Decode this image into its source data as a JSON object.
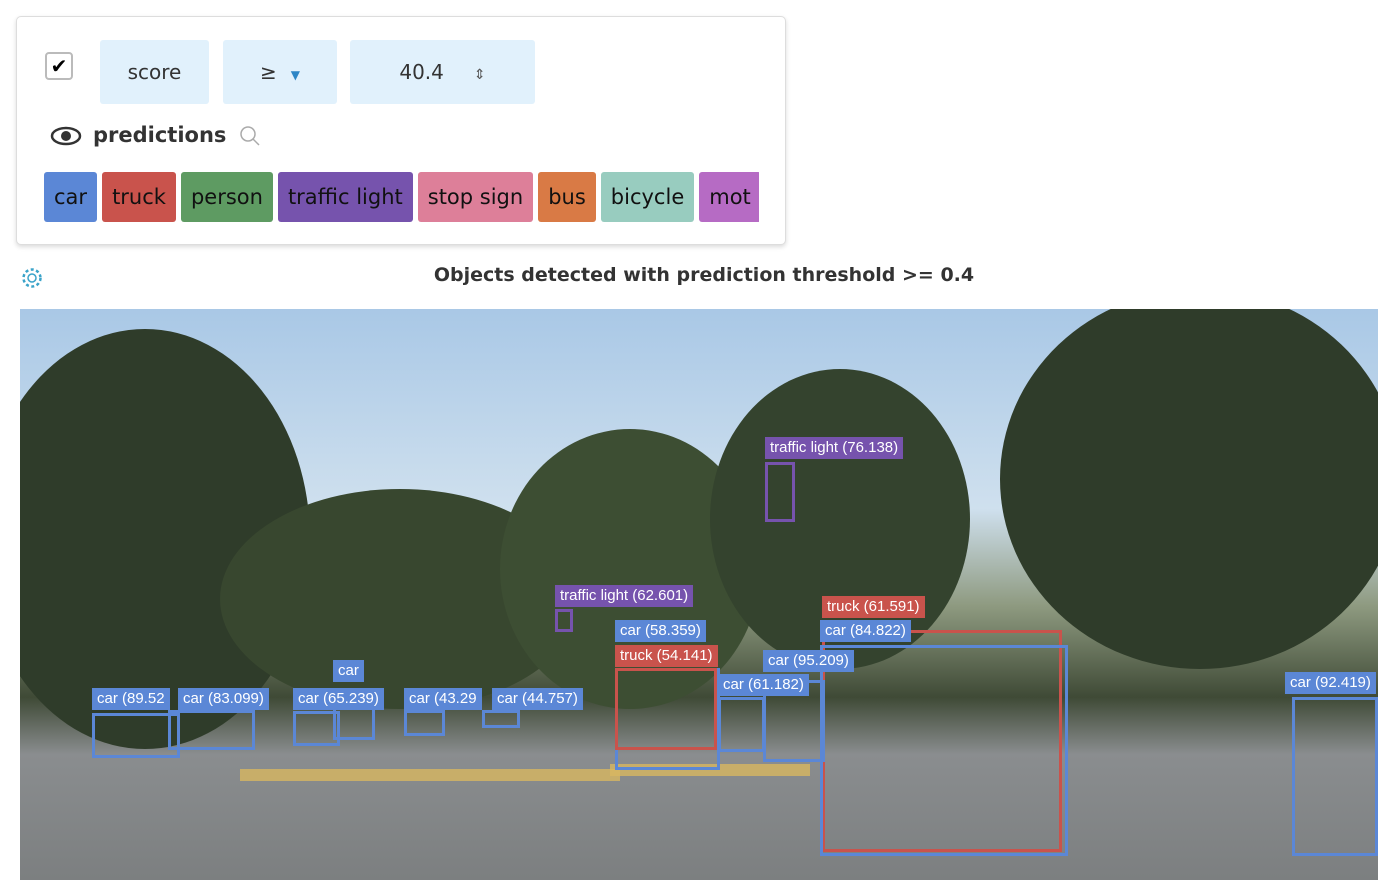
{
  "filter": {
    "checked": true,
    "field": "score",
    "operator": "≥",
    "value": "40.4"
  },
  "layer": {
    "name": "predictions"
  },
  "classes": [
    {
      "label": "car",
      "color": "#5b87d6"
    },
    {
      "label": "truck",
      "color": "#c9534c"
    },
    {
      "label": "person",
      "color": "#5e9b62"
    },
    {
      "label": "traffic light",
      "color": "#7653ad"
    },
    {
      "label": "stop sign",
      "color": "#dd7f99"
    },
    {
      "label": "bus",
      "color": "#d97a45"
    },
    {
      "label": "bicycle",
      "color": "#98ccbf"
    },
    {
      "label": "mot",
      "color": "#b66bc4"
    }
  ],
  "image_title": "Objects detected with prediction threshold >= 0.4",
  "boxes": [
    {
      "label": "truck (61.591)",
      "cls": "truck"
    },
    {
      "label": "car (84.822)",
      "cls": "car"
    },
    {
      "label": "traffic light (76.138)",
      "cls": "traffic light"
    },
    {
      "label": "traffic light (62.601)",
      "cls": "traffic light"
    },
    {
      "label": "car (58.359)",
      "cls": "car"
    },
    {
      "label": "truck (54.141)",
      "cls": "truck"
    },
    {
      "label": "car (95.209)",
      "cls": "car"
    },
    {
      "label": "car (61.182)",
      "cls": "car"
    },
    {
      "label": "car (92.419)",
      "cls": "car"
    },
    {
      "label": "car (89.52",
      "cls": "car"
    },
    {
      "label": "car (83.099)",
      "cls": "car"
    },
    {
      "label": "car",
      "cls": "car"
    },
    {
      "label": "car (65.239)",
      "cls": "car"
    },
    {
      "label": "car (43.29",
      "cls": "car"
    },
    {
      "label": "car (44.757)",
      "cls": "car"
    }
  ]
}
